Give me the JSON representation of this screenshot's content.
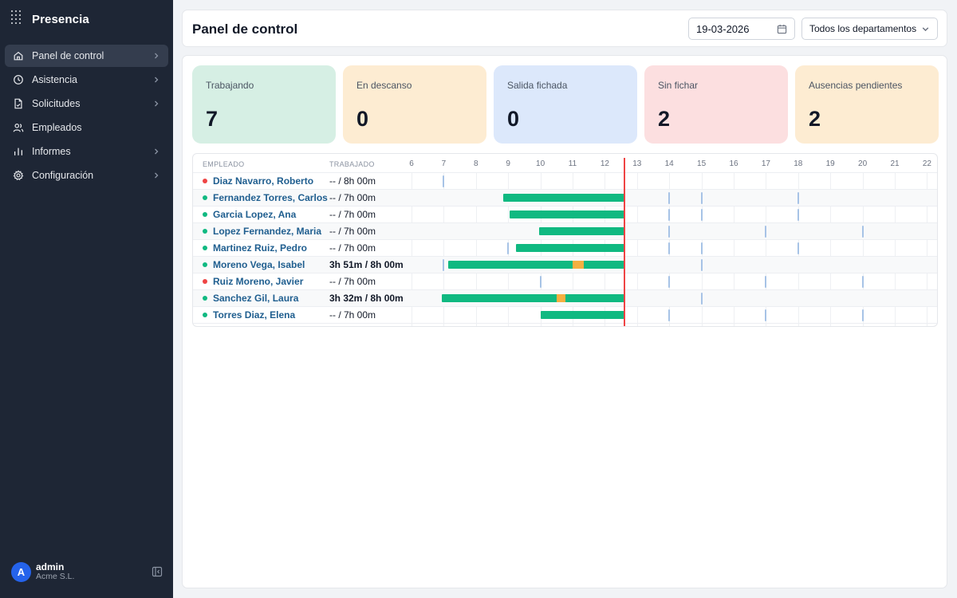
{
  "app": {
    "name": "Presencia"
  },
  "sidebar": {
    "items": [
      {
        "label": "Panel de control",
        "icon": "home-icon",
        "active": true,
        "has_chevron": true
      },
      {
        "label": "Asistencia",
        "icon": "clock-icon",
        "active": false,
        "has_chevron": true
      },
      {
        "label": "Solicitudes",
        "icon": "file-icon",
        "active": false,
        "has_chevron": true
      },
      {
        "label": "Empleados",
        "icon": "users-icon",
        "active": false,
        "has_chevron": false
      },
      {
        "label": "Informes",
        "icon": "chart-icon",
        "active": false,
        "has_chevron": true
      },
      {
        "label": "Configuración",
        "icon": "gear-icon",
        "active": false,
        "has_chevron": true
      }
    ],
    "user": {
      "initial": "A",
      "name": "admin",
      "org": "Acme S.L."
    }
  },
  "header": {
    "title": "Panel de control",
    "date": "19-03-2026",
    "department": "Todos los departamentos"
  },
  "stats": [
    {
      "label": "Trabajando",
      "value": "7",
      "color": "#d6efe4"
    },
    {
      "label": "En descanso",
      "value": "0",
      "color": "#fdecd2"
    },
    {
      "label": "Salida fichada",
      "value": "0",
      "color": "#dce8fb"
    },
    {
      "label": "Sin fichar",
      "value": "2",
      "color": "#fcdfe0"
    },
    {
      "label": "Ausencias pendientes",
      "value": "2",
      "color": "#fdecd2"
    }
  ],
  "timeline": {
    "headers": {
      "employee": "EMPLEADO",
      "worked": "TRABAJADO"
    },
    "hours": [
      "6",
      "7",
      "8",
      "9",
      "10",
      "11",
      "12",
      "13",
      "14",
      "15",
      "16",
      "17",
      "18",
      "19",
      "20",
      "21",
      "22"
    ],
    "now_hour": 12.6,
    "colors": {
      "work": "#10b981",
      "break": "#f5b041",
      "now": "#ef4444",
      "active_dot": "#10b981",
      "absent_dot": "#ef4444"
    },
    "rows": [
      {
        "name": "Diaz Navarro, Roberto",
        "status": "absent",
        "worked": "-- / 8h 00m",
        "bold": false,
        "bars": [],
        "breaks": [],
        "ticks": [
          7
        ]
      },
      {
        "name": "Fernandez Torres, Carlos",
        "status": "active",
        "worked": "-- / 7h 00m",
        "bold": false,
        "bars": [
          [
            8.85,
            12.6
          ]
        ],
        "breaks": [],
        "ticks": [
          14,
          15,
          18
        ]
      },
      {
        "name": "Garcia Lopez, Ana",
        "status": "active",
        "worked": "-- / 7h 00m",
        "bold": false,
        "bars": [
          [
            9.05,
            12.6
          ]
        ],
        "breaks": [],
        "ticks": [
          14,
          15,
          18
        ]
      },
      {
        "name": "Lopez Fernandez, Maria",
        "status": "active",
        "worked": "-- / 7h 00m",
        "bold": false,
        "bars": [
          [
            9.95,
            12.6
          ]
        ],
        "breaks": [],
        "ticks": [
          14,
          17,
          20
        ]
      },
      {
        "name": "Martinez Ruiz, Pedro",
        "status": "active",
        "worked": "-- / 7h 00m",
        "bold": false,
        "bars": [
          [
            9.25,
            12.6
          ]
        ],
        "breaks": [],
        "ticks": [
          9,
          14,
          15,
          18
        ]
      },
      {
        "name": "Moreno Vega, Isabel",
        "status": "active",
        "worked": "3h 51m / 8h 00m",
        "bold": true,
        "bars": [
          [
            7.15,
            12.6
          ]
        ],
        "breaks": [
          [
            11.0,
            11.35
          ]
        ],
        "ticks": [
          7,
          15
        ]
      },
      {
        "name": "Ruiz Moreno, Javier",
        "status": "absent",
        "worked": "-- / 7h 00m",
        "bold": false,
        "bars": [],
        "breaks": [],
        "ticks": [
          10,
          14,
          17,
          20
        ]
      },
      {
        "name": "Sanchez Gil, Laura",
        "status": "active",
        "worked": "3h 32m / 8h 00m",
        "bold": true,
        "bars": [
          [
            6.95,
            12.6
          ]
        ],
        "breaks": [
          [
            10.5,
            10.78
          ]
        ],
        "ticks": [
          15
        ]
      },
      {
        "name": "Torres Diaz, Elena",
        "status": "active",
        "worked": "-- / 7h 00m",
        "bold": false,
        "bars": [
          [
            10.0,
            12.6
          ]
        ],
        "breaks": [],
        "ticks": [
          14,
          17,
          20
        ]
      }
    ]
  }
}
